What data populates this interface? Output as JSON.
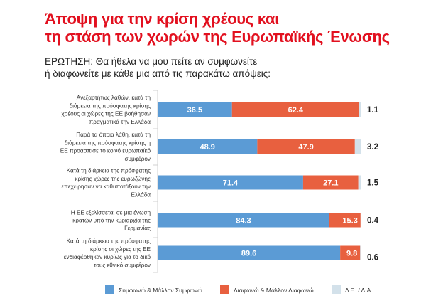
{
  "header": {
    "title_lines": [
      "Άποψη για την κρίση χρέους και",
      "τη στάση των χωρών της Ευρωπαϊκής Ένωσης"
    ],
    "question_lines": [
      "ΕΡΩΤΗΣΗ: Θα ήθελα να μου πείτε αν συμφωνείτε",
      "ή διαφωνείτε με κάθε μια από τις παρακάτω απόψεις:"
    ]
  },
  "colors": {
    "title": "#e2101f",
    "agree": "#5b9bd5",
    "disagree": "#e8603f",
    "dk": "#d3e1ea"
  },
  "chart_data": {
    "type": "bar",
    "orientation": "horizontal",
    "stacked": true,
    "title": "Άποψη για την κρίση χρέους και τη στάση των χωρών της Ευρωπαϊκής Ένωσης",
    "xlabel": "",
    "ylabel": "",
    "xlim": [
      0,
      100
    ],
    "grid": false,
    "legend_position": "bottom",
    "categories": [
      [
        "Ανεξαρτήτως λαθών, κατά τη",
        "διάρκεια της πρόσφατης κρίσης",
        "χρέους οι χώρες της ΕΕ βοήθησαν",
        "πραγματικά την Ελλάδα"
      ],
      [
        "Παρά τα όποια λάθη, κατά τη",
        "διάρκεια της πρόσφατης κρίσης η",
        "ΕΕ προάσπισε το κοινό ευρωπαϊκό",
        "συμφέρον"
      ],
      [
        "Κατά τη διάρκεια της πρόσφατης",
        "κρίσης χώρες της ευρωζώνης",
        "επεχείρησαν να καθυποτάξουν την",
        "Ελλάδα"
      ],
      [
        "Η ΕΕ εξελίσσεται σε μια ένωση",
        "κρατών υπό την κυριαρχία της",
        "Γερμανίας"
      ],
      [
        "Κατά τη διάρκεια της πρόσφατης",
        "κρίσης οι χώρες της ΕΕ",
        "ενδιαφέρθηκαν κυρίως για το δικό",
        "τους εθνικό συμφέρον"
      ]
    ],
    "series": [
      {
        "name": "Συμφωνώ & Μάλλον Συμφωνώ",
        "values": [
          36.5,
          48.9,
          71.4,
          84.3,
          89.6
        ]
      },
      {
        "name": "Διαφωνώ & Μάλλον Διαφωνώ",
        "values": [
          62.4,
          47.9,
          27.1,
          15.3,
          9.8
        ]
      },
      {
        "name": "Δ.Ξ. / Δ.Α.",
        "values": [
          1.1,
          3.2,
          1.5,
          0.4,
          0.6
        ]
      }
    ]
  }
}
